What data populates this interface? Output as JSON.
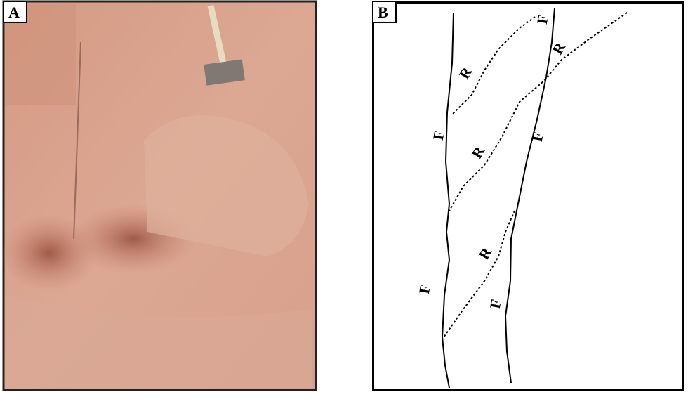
{
  "panels": [
    {
      "label": "A"
    },
    {
      "label": "B",
      "annotations": [
        "F",
        "R",
        "R",
        "F",
        "R",
        "F",
        "R",
        "F",
        "F"
      ]
    }
  ]
}
